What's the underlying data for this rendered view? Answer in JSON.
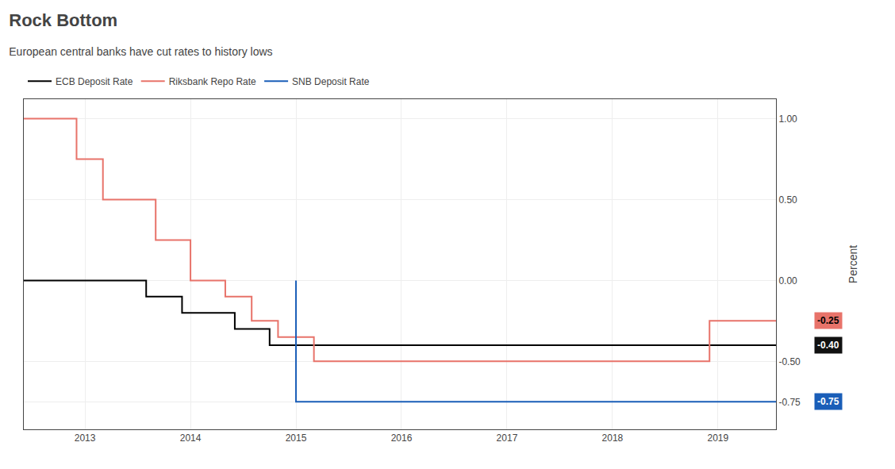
{
  "chart_data": {
    "type": "line",
    "title": "Rock Bottom",
    "subtitle": "European central banks have cut rates to history lows",
    "ylabel": "Percent",
    "series": [
      {
        "name": "ECB Deposit Rate",
        "color": "#000000",
        "type": "step",
        "x": [
          2012.42,
          2013.08,
          2013.58,
          2013.92,
          2014.42,
          2014.75,
          2019.55
        ],
        "values": [
          0.0,
          0.0,
          -0.1,
          -0.2,
          -0.3,
          -0.4,
          -0.4
        ]
      },
      {
        "name": "Riksbank Repo Rate",
        "color": "#e8736a",
        "type": "step",
        "x": [
          2012.42,
          2012.92,
          2013.17,
          2013.67,
          2014.0,
          2014.33,
          2014.58,
          2014.83,
          2015.17,
          2015.58,
          2018.67,
          2018.92,
          2019.55
        ],
        "values": [
          1.0,
          0.75,
          0.5,
          0.25,
          0.0,
          -0.1,
          -0.25,
          -0.35,
          -0.5,
          -0.5,
          -0.5,
          -0.25,
          -0.25
        ]
      },
      {
        "name": "SNB Deposit Rate",
        "color": "#1a5eb8",
        "type": "line",
        "x": [
          2015.0,
          2015.0,
          2019.55
        ],
        "values": [
          0.0,
          -0.75,
          -0.75
        ]
      }
    ],
    "xlim": [
      2012.42,
      2019.55
    ],
    "xticks": [
      2013,
      2014,
      2015,
      2016,
      2017,
      2018,
      2019
    ],
    "ylim": [
      -0.92,
      1.12
    ],
    "yticks": [
      -0.75,
      {
        "value": -0.5,
        "label": "-0.50"
      },
      {
        "value": 0,
        "label": "0.00"
      },
      {
        "value": 0.5,
        "label": "0.50"
      },
      {
        "value": 1,
        "label": "1.00"
      }
    ],
    "grid": true,
    "legend": "top left",
    "annotations": [
      {
        "label": "-0.25",
        "value": -0.25,
        "color": "#e8736a",
        "text_color": "#000000"
      },
      {
        "label": "-0.40",
        "value": -0.4,
        "color": "#111111",
        "text_color": "#ffffff"
      },
      {
        "label": "-0.75",
        "value": -0.75,
        "color": "#1a5eb8",
        "text_color": "#ffffff"
      }
    ]
  }
}
